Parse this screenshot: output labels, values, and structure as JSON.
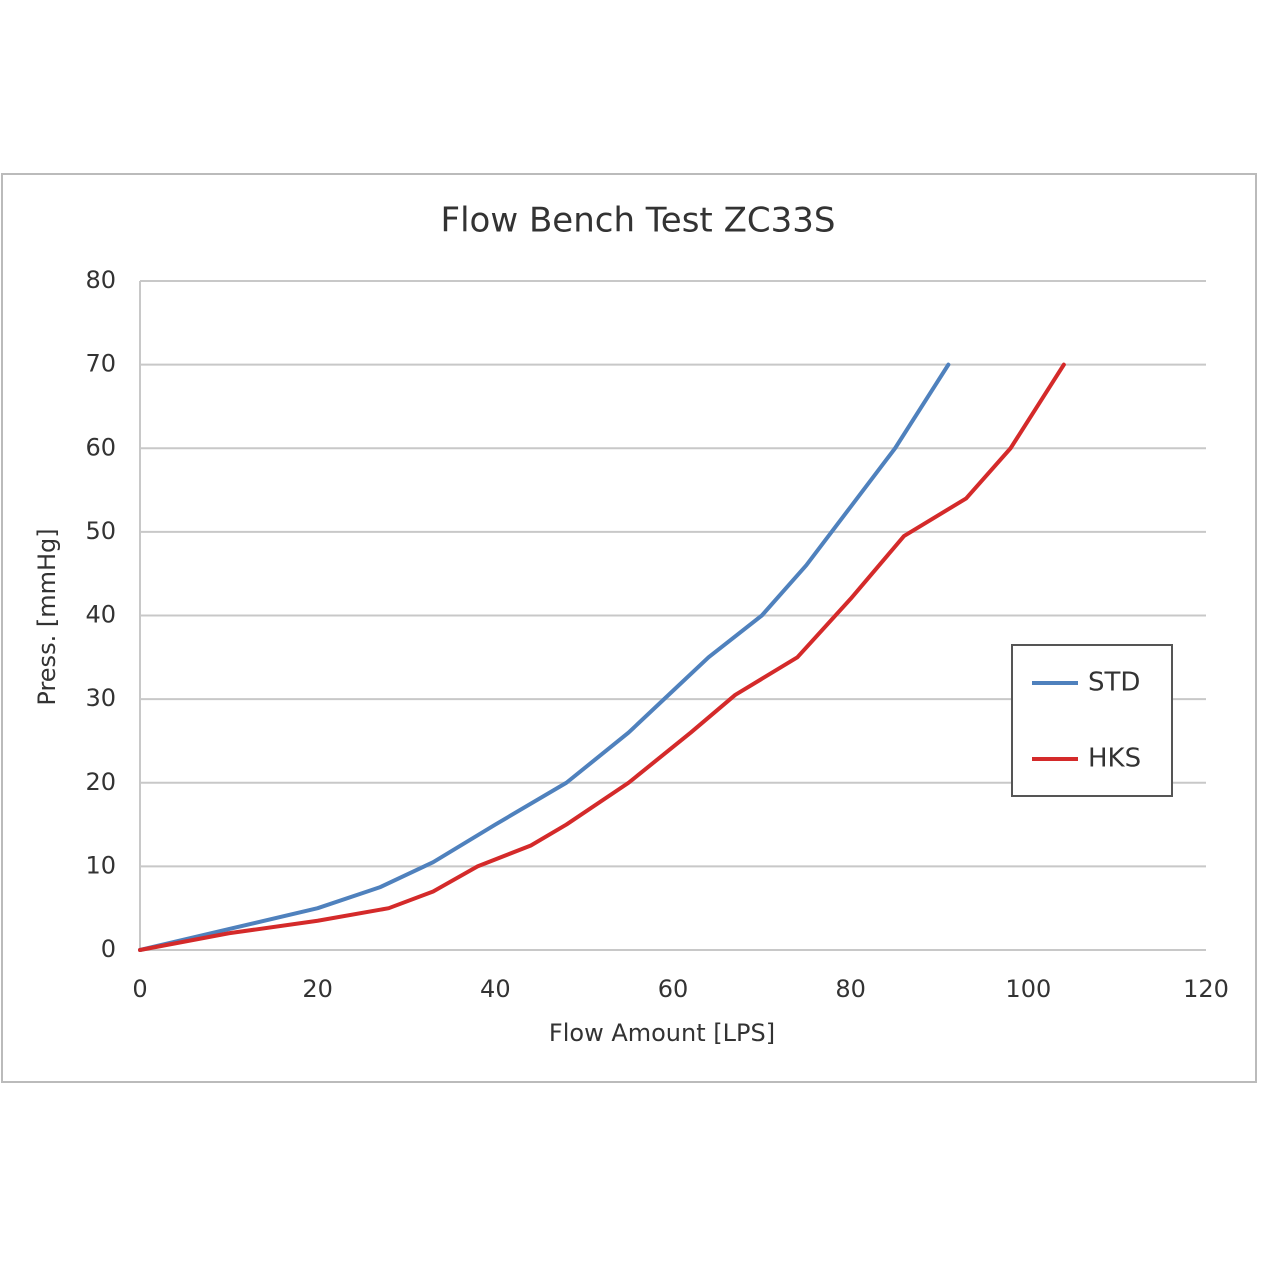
{
  "chart_data": {
    "type": "line",
    "title": "Flow Bench Test  ZC33S",
    "x_label": "Flow Amount [LPS]",
    "y_label": "Press. [mmHg]",
    "xlim": [
      0,
      120
    ],
    "xticks": [
      0,
      20,
      40,
      60,
      80,
      100,
      120
    ],
    "ylim": [
      0,
      80
    ],
    "yticks": [
      0,
      10,
      20,
      30,
      40,
      50,
      60,
      70,
      80
    ],
    "grid": true,
    "legend": "right",
    "series": [
      {
        "name": "STD",
        "color": "#4f81bd",
        "x": [
          0,
          10,
          20,
          27,
          33,
          40,
          48,
          55,
          60,
          64,
          70,
          75,
          80,
          85,
          91
        ],
        "values": [
          0,
          2.5,
          5,
          7.5,
          10.5,
          15,
          20,
          26,
          31,
          35,
          40,
          46,
          53,
          60,
          70
        ]
      },
      {
        "name": "HKS",
        "color": "#d42a2a",
        "x": [
          0,
          10,
          20,
          28,
          33,
          38,
          44,
          48,
          55,
          62,
          67,
          74,
          80,
          86,
          93,
          98,
          104
        ],
        "values": [
          0,
          2,
          3.5,
          5,
          7,
          10,
          12.5,
          15,
          20,
          26,
          30.5,
          35,
          42,
          49.5,
          54,
          60,
          70
        ]
      }
    ]
  }
}
